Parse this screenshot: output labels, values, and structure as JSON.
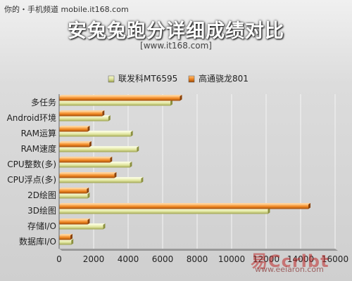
{
  "header": {
    "source_label": "你的・手机频道 mobile.it168.com",
    "title": "安兔兔跑分详细成绩对比",
    "url": "[www.it168.com]"
  },
  "watermark": {
    "text": "易Ccrlbt",
    "subtext": "www.eeiaron.com"
  },
  "colors": {
    "series_a": "#dde29a",
    "series_b": "#ee8420"
  },
  "chart_data": {
    "type": "bar",
    "orientation": "horizontal",
    "title": "安兔兔跑分详细成绩对比",
    "xlabel": "",
    "ylabel": "",
    "xlim": [
      0,
      16000
    ],
    "xticks": [
      0,
      2000,
      4000,
      6000,
      8000,
      10000,
      12000,
      14000,
      16000
    ],
    "xtick_labels": [
      "0",
      "2000",
      "4000",
      "6000",
      "8000",
      "10000",
      "12000",
      "14000",
      "16000"
    ],
    "grid": true,
    "legend_position": "top",
    "categories": [
      "多任务",
      "Android环境",
      "RAM运算",
      "RAM速度",
      "CPU整数(多)",
      "CPU浮点(多)",
      "2D绘图",
      "3D绘图",
      "存储I/O",
      "数据库I/O"
    ],
    "series": [
      {
        "name": "联发科MT6595",
        "values": [
          6450,
          2850,
          4150,
          4500,
          4100,
          4750,
          1650,
          12100,
          2550,
          700
        ]
      },
      {
        "name": "高通骁龙801",
        "values": [
          7000,
          2500,
          1650,
          1750,
          2950,
          3200,
          1600,
          14450,
          1650,
          650
        ]
      }
    ]
  }
}
